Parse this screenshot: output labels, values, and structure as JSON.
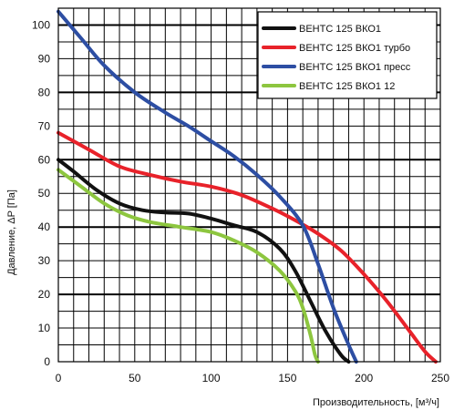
{
  "chart_data": {
    "type": "line",
    "title": "",
    "xlabel": "Производительность, [м³/ч]",
    "ylabel": "Давление, ΔP [Па]",
    "xlim": [
      0,
      250
    ],
    "ylim": [
      0,
      105
    ],
    "x_ticks": [
      "0",
      "50",
      "100",
      "150",
      "200",
      "250"
    ],
    "y_ticks": [
      "0",
      "10",
      "20",
      "30",
      "40",
      "50",
      "60",
      "70",
      "80",
      "90",
      "100"
    ],
    "grid": true,
    "legend_position": "top-right",
    "series": [
      {
        "name": "ВЕНТС 125 ВКО1",
        "color": "#111111",
        "points": [
          [
            0,
            60
          ],
          [
            10,
            56.5
          ],
          [
            25,
            51
          ],
          [
            40,
            47
          ],
          [
            55,
            45
          ],
          [
            70,
            44.3
          ],
          [
            85,
            44
          ],
          [
            100,
            42.5
          ],
          [
            115,
            40.5
          ],
          [
            130,
            38.5
          ],
          [
            145,
            33.5
          ],
          [
            155,
            27
          ],
          [
            165,
            18
          ],
          [
            175,
            9
          ],
          [
            185,
            2
          ],
          [
            190,
            0
          ]
        ]
      },
      {
        "name": "ВЕНТС 125 ВКО1 турбо",
        "color": "#e8222a",
        "points": [
          [
            0,
            68
          ],
          [
            20,
            63
          ],
          [
            40,
            58
          ],
          [
            60,
            55.5
          ],
          [
            80,
            53.5
          ],
          [
            100,
            52
          ],
          [
            120,
            49.5
          ],
          [
            140,
            45.5
          ],
          [
            155,
            42
          ],
          [
            170,
            38
          ],
          [
            185,
            33
          ],
          [
            200,
            26
          ],
          [
            215,
            18
          ],
          [
            230,
            9
          ],
          [
            240,
            3
          ],
          [
            247,
            0
          ]
        ]
      },
      {
        "name": "ВЕНТС 125 ВКО1 пресс",
        "color": "#2d4ea3",
        "points": [
          [
            0,
            104
          ],
          [
            15,
            96
          ],
          [
            30,
            88
          ],
          [
            50,
            80
          ],
          [
            70,
            74
          ],
          [
            85,
            70
          ],
          [
            100,
            65.5
          ],
          [
            115,
            61
          ],
          [
            130,
            55.5
          ],
          [
            145,
            49
          ],
          [
            160,
            40.5
          ],
          [
            170,
            29
          ],
          [
            180,
            16
          ],
          [
            190,
            5
          ],
          [
            195,
            0
          ]
        ]
      },
      {
        "name": "ВЕНТС 125 ВКО1 12",
        "color": "#8dc63f",
        "points": [
          [
            0,
            57
          ],
          [
            15,
            52
          ],
          [
            30,
            47
          ],
          [
            45,
            43.5
          ],
          [
            60,
            41.5
          ],
          [
            80,
            40
          ],
          [
            100,
            38.5
          ],
          [
            115,
            36
          ],
          [
            130,
            32.5
          ],
          [
            145,
            27
          ],
          [
            155,
            21
          ],
          [
            160,
            16
          ],
          [
            165,
            8
          ],
          [
            168,
            2
          ],
          [
            170,
            0
          ]
        ]
      }
    ]
  }
}
